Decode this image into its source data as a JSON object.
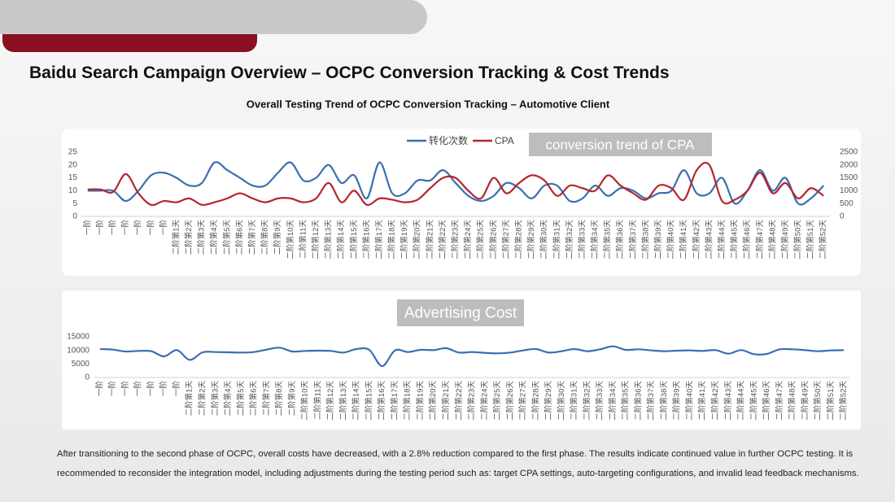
{
  "title": "Baidu Search Campaign Overview – OCPC Conversion Tracking & Cost Trends",
  "paragraph": "After transitioning to the second phase of OCPC, overall costs have decreased, with a 2.8% reduction compared to the first phase. The results indicate continued value in further OCPC testing. It is recommended to reconsider the integration model, including adjustments during the testing period such as: target CPA settings, auto-targeting configurations, and invalid lead feedback mechanisms.",
  "chart_data": [
    {
      "type": "line",
      "title": "Overall Testing Trend of OCPC Conversion Tracking – Automotive Client",
      "annotation": "conversion trend of CPA",
      "categories": [
        "一阶",
        "一阶",
        "一阶",
        "一阶",
        "一阶",
        "一阶",
        "一阶",
        "二阶第1天",
        "二阶第2天",
        "二阶第3天",
        "二阶第4天",
        "二阶第5天",
        "二阶第6天",
        "二阶第7天",
        "二阶第8天",
        "二阶第9天",
        "二阶第10天",
        "二阶第11天",
        "二阶第12天",
        "二阶第13天",
        "二阶第14天",
        "二阶第15天",
        "二阶第16天",
        "二阶第17天",
        "二阶第18天",
        "二阶第19天",
        "二阶第20天",
        "二阶第21天",
        "二阶第22天",
        "二阶第23天",
        "二阶第24天",
        "二阶第25天",
        "二阶第26天",
        "二阶第27天",
        "二阶第28天",
        "二阶第29天",
        "二阶第30天",
        "二阶第31天",
        "二阶第32天",
        "二阶第33天",
        "二阶第34天",
        "二阶第35天",
        "二阶第36天",
        "二阶第37天",
        "二阶第38天",
        "二阶第39天",
        "二阶第40天",
        "二阶第41天",
        "二阶第42天",
        "二阶第43天",
        "二阶第44天",
        "二阶第45天",
        "二阶第46天",
        "二阶第47天",
        "二阶第48天",
        "二阶第49天",
        "二阶第50天",
        "二阶第51天",
        "二阶第52天"
      ],
      "series": [
        {
          "name": "转化次数",
          "color": "#3a6fb0",
          "values": [
            10,
            10,
            10,
            6,
            10,
            16,
            17,
            15,
            12,
            13,
            21,
            18,
            15,
            12,
            12,
            17,
            21,
            14,
            15,
            20,
            13,
            16,
            7,
            21,
            9,
            9,
            14,
            14,
            18,
            13,
            8,
            6,
            8,
            13,
            11,
            7,
            12,
            12,
            6,
            7,
            12,
            8,
            11,
            10,
            7,
            9,
            10,
            18,
            9,
            9,
            15,
            5,
            10,
            18,
            10,
            15,
            5,
            7,
            12
          ]
        },
        {
          "name": "CPA",
          "color": "#b5272f",
          "axis": "y2",
          "values": [
            1050,
            1050,
            950,
            1650,
            900,
            450,
            600,
            550,
            700,
            450,
            550,
            700,
            900,
            700,
            550,
            700,
            700,
            550,
            700,
            1300,
            550,
            1000,
            450,
            700,
            650,
            550,
            650,
            1100,
            1500,
            1500,
            1000,
            700,
            1500,
            900,
            1300,
            1600,
            1400,
            800,
            1200,
            1100,
            1000,
            1600,
            1200,
            900,
            650,
            1200,
            1100,
            650,
            1800,
            2000,
            600,
            650,
            1000,
            1700,
            900,
            1300,
            700,
            1100,
            800
          ]
        }
      ],
      "ylim": [
        0,
        25
      ],
      "yticks": [
        0,
        5,
        10,
        15,
        20,
        25
      ],
      "y2lim": [
        0,
        2500
      ],
      "y2ticks": [
        0,
        500,
        1000,
        1500,
        2000,
        2500
      ],
      "legend": "top"
    },
    {
      "type": "line",
      "title": "Advertising Cost",
      "categories": [
        "一阶",
        "一阶",
        "一阶",
        "一阶",
        "一阶",
        "一阶",
        "一阶",
        "二阶第1天",
        "二阶第2天",
        "二阶第3天",
        "二阶第4天",
        "二阶第5天",
        "二阶第6天",
        "二阶第7天",
        "二阶第8天",
        "二阶第9天",
        "二阶第10天",
        "二阶第11天",
        "二阶第12天",
        "二阶第13天",
        "二阶第14天",
        "二阶第15天",
        "二阶第16天",
        "二阶第17天",
        "二阶第18天",
        "二阶第19天",
        "二阶第20天",
        "二阶第21天",
        "二阶第22天",
        "二阶第23天",
        "二阶第24天",
        "二阶第25天",
        "二阶第26天",
        "二阶第27天",
        "二阶第28天",
        "二阶第29天",
        "二阶第30天",
        "二阶第31天",
        "二阶第32天",
        "二阶第33天",
        "二阶第34天",
        "二阶第35天",
        "二阶第36天",
        "二阶第37天",
        "二阶第38天",
        "二阶第39天",
        "二阶第40天",
        "二阶第41天",
        "二阶第42天",
        "二阶第43天",
        "二阶第44天",
        "二阶第45天",
        "二阶第46天",
        "二阶第47天",
        "二阶第48天",
        "二阶第49天",
        "二阶第50天",
        "二阶第51天",
        "二阶第52天"
      ],
      "color": "#3a6fb0",
      "values": [
        10500,
        10300,
        9600,
        9800,
        9700,
        7800,
        10100,
        6500,
        9300,
        9400,
        9300,
        9200,
        9400,
        10300,
        11000,
        9600,
        9800,
        9900,
        9800,
        9200,
        10500,
        10200,
        4200,
        10000,
        9400,
        10200,
        10100,
        10800,
        9200,
        9400,
        9100,
        8900,
        9200,
        10000,
        10500,
        9200,
        9700,
        10500,
        9700,
        10400,
        11500,
        10200,
        10400,
        10000,
        9700,
        9900,
        10000,
        9800,
        10100,
        8800,
        10100,
        8600,
        8700,
        10400,
        10400,
        10100,
        9700,
        10000,
        10100
      ],
      "ylim": [
        0,
        15000
      ],
      "yticks": [
        0,
        5000,
        10000,
        15000
      ]
    }
  ]
}
